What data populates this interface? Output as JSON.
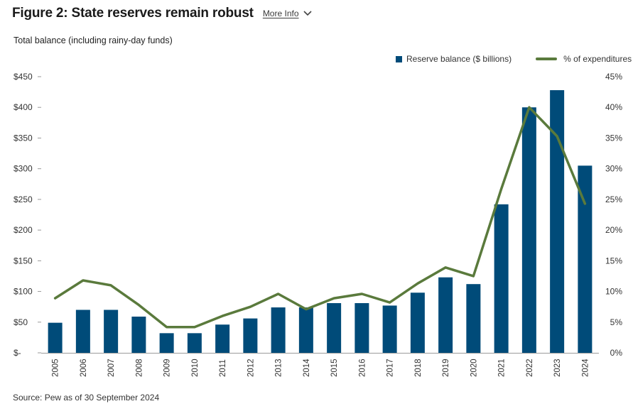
{
  "header": {
    "title": "Figure 2: State reserves remain robust",
    "more_info_label": "More Info"
  },
  "source": "Source: Pew as of 30 September 2024",
  "colors": {
    "bar": "#004b79",
    "line": "#5a7a3c"
  },
  "chart_data": {
    "type": "bar",
    "subtitle": "Total balance (including rainy-day funds)",
    "categories": [
      "2005",
      "2006",
      "2007",
      "2008",
      "2009",
      "2010",
      "2011",
      "2012",
      "2013",
      "2014",
      "2015",
      "2016",
      "2017",
      "2018",
      "2019",
      "2020",
      "2021",
      "2022",
      "2023",
      "2024"
    ],
    "series": [
      {
        "name": "Reserve balance ($ billions)",
        "type": "bar",
        "axis": "left",
        "values": [
          49,
          70,
          70,
          59,
          32,
          32,
          46,
          56,
          74,
          74,
          81,
          81,
          77,
          98,
          123,
          112,
          242,
          400,
          428,
          305
        ]
      },
      {
        "name": "% of expenditures",
        "type": "line",
        "axis": "right",
        "values": [
          8.9,
          11.8,
          11.0,
          7.8,
          4.2,
          4.2,
          6.0,
          7.5,
          9.6,
          7.1,
          8.9,
          9.6,
          8.2,
          11.3,
          13.9,
          12.5,
          26.7,
          40.0,
          35.3,
          24.3
        ]
      }
    ],
    "y_left": {
      "range": [
        0,
        450
      ],
      "ticks": [
        "$-",
        "$50",
        "$100",
        "$150",
        "$200",
        "$250",
        "$300",
        "$350",
        "$400",
        "$450"
      ]
    },
    "y_right": {
      "range": [
        0,
        45
      ],
      "ticks": [
        "0%",
        "5%",
        "10%",
        "15%",
        "20%",
        "25%",
        "30%",
        "35%",
        "40%",
        "45%"
      ]
    },
    "legend_position": "top-right",
    "grid": false
  }
}
